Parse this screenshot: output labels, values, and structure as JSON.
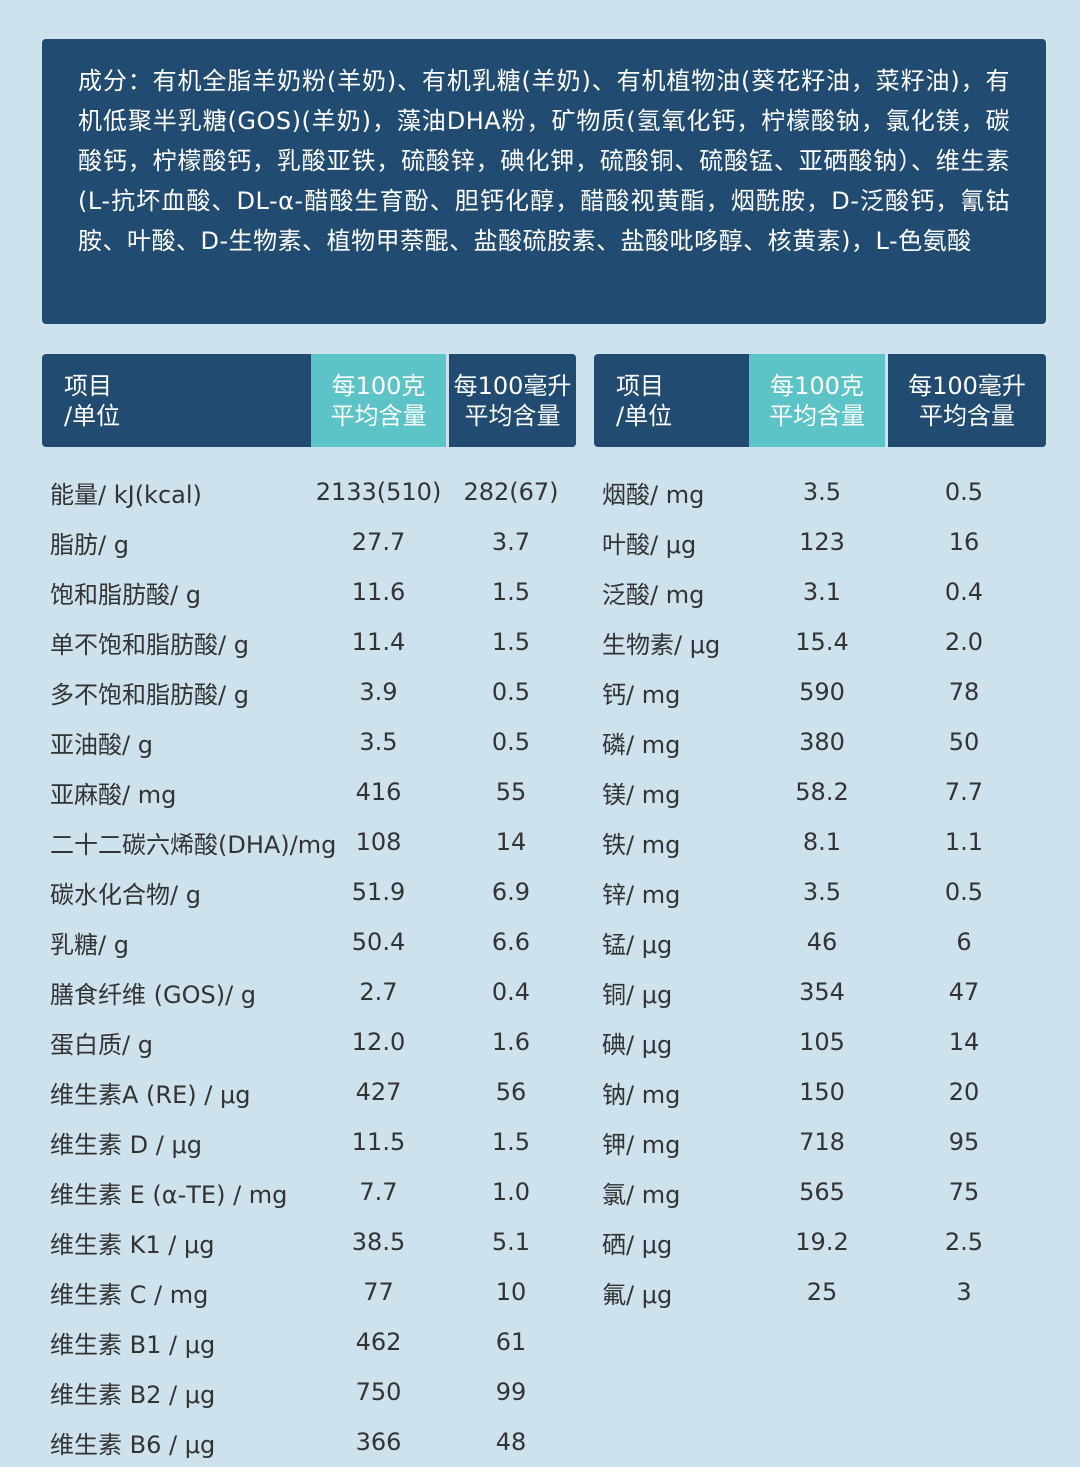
{
  "ingredients": "成分：有机全脂羊奶粉(羊奶)、有机乳糖(羊奶)、有机植物油(葵花籽油，菜籽油)，有机低聚半乳糖(GOS)(羊奶)，藻油DHA粉，矿物质(氢氧化钙，柠檬酸钠，氯化镁，碳酸钙，柠檬酸钙，乳酸亚铁，硫酸锌，碘化钾，硫酸铜、硫酸锰、亚硒酸钠）、维生素(L-抗坏血酸、DL-α-醋酸生育酚、胆钙化醇，醋酸视黄酯，烟酰胺，D-泛酸钙，氰钴胺、叶酸、D-生物素、植物甲萘醌、盐酸硫胺素、盐酸吡哆醇、核黄素)，L-色氨酸",
  "headers": {
    "item": [
      "项目",
      "/单位"
    ],
    "per100g": [
      "每100克",
      "平均含量"
    ],
    "per100ml": [
      "每100毫升",
      "平均含量"
    ]
  },
  "left_rows": [
    {
      "name": "能量/ kJ(kcal)",
      "g": "2133(510)",
      "ml": "282(67)"
    },
    {
      "name": "脂肪/ g",
      "g": "27.7",
      "ml": "3.7"
    },
    {
      "name": "饱和脂肪酸/ g",
      "g": "11.6",
      "ml": "1.5"
    },
    {
      "name": "单不饱和脂肪酸/ g",
      "g": "11.4",
      "ml": "1.5"
    },
    {
      "name": "多不饱和脂肪酸/ g",
      "g": "3.9",
      "ml": "0.5"
    },
    {
      "name": "亚油酸/ g",
      "g": "3.5",
      "ml": "0.5"
    },
    {
      "name": "亚麻酸/ mg",
      "g": "416",
      "ml": "55"
    },
    {
      "name": "二十二碳六烯酸(DHA)/mg",
      "g": "108",
      "ml": "14"
    },
    {
      "name": "碳水化合物/ g",
      "g": "51.9",
      "ml": "6.9"
    },
    {
      "name": "乳糖/ g",
      "g": "50.4",
      "ml": "6.6"
    },
    {
      "name": "膳食纤维 (GOS)/ g",
      "g": "2.7",
      "ml": "0.4"
    },
    {
      "name": "蛋白质/ g",
      "g": "12.0",
      "ml": "1.6"
    },
    {
      "name": "维生素A (RE) /  μg",
      "g": "427",
      "ml": "56"
    },
    {
      "name": "维生素 D / μg",
      "g": "11.5",
      "ml": "1.5"
    },
    {
      "name": "维生素 E (α-TE) / mg",
      "g": "7.7",
      "ml": "1.0"
    },
    {
      "name": "维生素 K1 / μg",
      "g": "38.5",
      "ml": "5.1"
    },
    {
      "name": "维生素 C / mg",
      "g": "77",
      "ml": "10"
    },
    {
      "name": "维生素 B1 / μg",
      "g": "462",
      "ml": "61"
    },
    {
      "name": "维生素 B2 / μg",
      "g": "750",
      "ml": "99"
    },
    {
      "name": "维生素 B6 / μg",
      "g": "366",
      "ml": "48"
    }
  ],
  "right_rows": [
    {
      "name": "烟酸/ mg",
      "g": "3.5",
      "ml": "0.5"
    },
    {
      "name": "叶酸/ μg",
      "g": "123",
      "ml": "16"
    },
    {
      "name": "泛酸/ mg",
      "g": "3.1",
      "ml": "0.4"
    },
    {
      "name": "生物素/ μg",
      "g": "15.4",
      "ml": "2.0"
    },
    {
      "name": "钙/ mg",
      "g": "590",
      "ml": "78"
    },
    {
      "name": "磷/ mg",
      "g": "380",
      "ml": "50"
    },
    {
      "name": "镁/ mg",
      "g": "58.2",
      "ml": "7.7"
    },
    {
      "name": "铁/ mg",
      "g": "8.1",
      "ml": "1.1"
    },
    {
      "name": "锌/ mg",
      "g": "3.5",
      "ml": "0.5"
    },
    {
      "name": "锰/ μg",
      "g": "46",
      "ml": "6"
    },
    {
      "name": "铜/ μg",
      "g": "354",
      "ml": "47"
    },
    {
      "name": "碘/ μg",
      "g": "105",
      "ml": "14"
    },
    {
      "name": "钠/ mg",
      "g": "150",
      "ml": "20"
    },
    {
      "name": "钾/ mg",
      "g": "718",
      "ml": "95"
    },
    {
      "name": "氯/ mg",
      "g": "565",
      "ml": "75"
    },
    {
      "name": "硒/ μg",
      "g": "19.2",
      "ml": "2.5"
    },
    {
      "name": "氟/ μg",
      "g": "25",
      "ml": "3"
    }
  ],
  "colors": {
    "navy": "#214b70",
    "teal": "#5cc3c6",
    "background": "#cde2ec"
  }
}
